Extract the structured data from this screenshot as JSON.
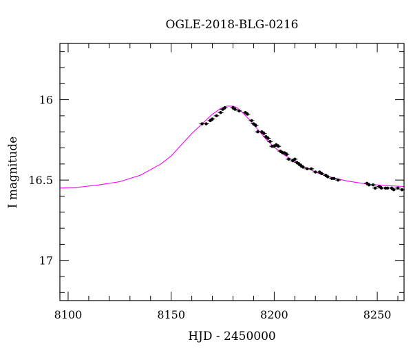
{
  "chart_data": {
    "type": "scatter",
    "title": "OGLE-2018-BLG-0216",
    "xlabel": "HJD - 2450000",
    "ylabel": "I magnitude",
    "xlim": [
      8096,
      8263
    ],
    "ylim": [
      17.25,
      15.65
    ],
    "y_inverted": true,
    "x_ticks": [
      8100,
      8150,
      8200,
      8250
    ],
    "y_ticks": [
      16,
      16.5,
      17
    ],
    "x_tick_labels": [
      "8100",
      "8150",
      "8200",
      "8250"
    ],
    "y_tick_labels": [
      "16",
      "16.5",
      "17"
    ],
    "grid": false,
    "colors": {
      "model": "#ff00ff",
      "data": "#000000",
      "frame": "#000000"
    },
    "series": [
      {
        "name": "",
        "kind": "line",
        "x": [
          8096,
          8105,
          8115,
          8125,
          8135,
          8145,
          8150,
          8155,
          8160,
          8165,
          8170,
          8174,
          8177,
          8180,
          8182,
          8185,
          8188,
          8192,
          8196,
          8200,
          8205,
          8210,
          8215,
          8220,
          8225,
          8230,
          8235,
          8240,
          8245,
          8250,
          8255,
          8263
        ],
        "y": [
          16.55,
          16.545,
          16.53,
          16.51,
          16.47,
          16.4,
          16.35,
          16.28,
          16.21,
          16.15,
          16.09,
          16.055,
          16.04,
          16.04,
          16.05,
          16.085,
          16.125,
          16.185,
          16.245,
          16.295,
          16.345,
          16.385,
          16.42,
          16.45,
          16.475,
          16.49,
          16.505,
          16.515,
          16.525,
          16.53,
          16.535,
          16.54
        ]
      },
      {
        "name": "",
        "kind": "points",
        "x": [
          8165,
          8167,
          8169,
          8170,
          8172,
          8174,
          8175,
          8176,
          8180,
          8181,
          8183,
          8186,
          8187,
          8189,
          8190,
          8191,
          8192,
          8194,
          8195,
          8196,
          8197,
          8198,
          8199,
          8200,
          8201,
          8202,
          8203,
          8204,
          8205,
          8206,
          8207,
          8209,
          8210,
          8211,
          8212,
          8213,
          8214,
          8216,
          8218,
          8220,
          8222,
          8223,
          8225,
          8226,
          8228,
          8229,
          8231,
          8245,
          8246,
          8248,
          8249,
          8251,
          8252,
          8254,
          8255,
          8257,
          8258,
          8260,
          8262
        ],
        "y": [
          16.15,
          16.15,
          16.13,
          16.12,
          16.1,
          16.08,
          16.06,
          16.05,
          16.05,
          16.06,
          16.07,
          16.08,
          16.09,
          16.13,
          16.15,
          16.16,
          16.2,
          16.2,
          16.21,
          16.23,
          16.24,
          16.26,
          16.29,
          16.29,
          16.28,
          16.29,
          16.32,
          16.33,
          16.33,
          16.34,
          16.37,
          16.38,
          16.37,
          16.39,
          16.4,
          16.41,
          16.42,
          16.43,
          16.43,
          16.45,
          16.45,
          16.46,
          16.47,
          16.48,
          16.49,
          16.49,
          16.5,
          16.52,
          16.53,
          16.53,
          16.55,
          16.54,
          16.55,
          16.55,
          16.55,
          16.55,
          16.56,
          16.55,
          16.56
        ]
      }
    ]
  }
}
